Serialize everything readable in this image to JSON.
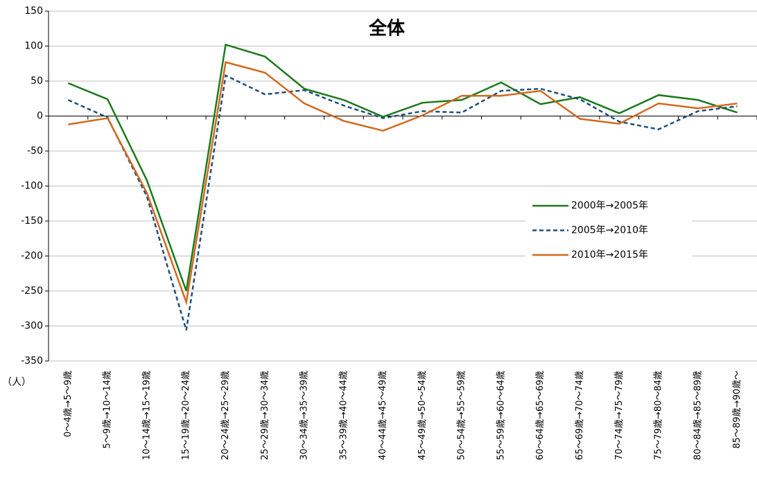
{
  "chart_data": {
    "type": "line",
    "title": "全体",
    "y_unit": "（人）",
    "categories": [
      "0～4歳→5～9歳",
      "5～9歳→10～14歳",
      "10～14歳→15～19歳",
      "15～19歳→20～24歳",
      "20～24歳→25～29歳",
      "25～29歳→30～34歳",
      "30～34歳→35～39歳",
      "35～39歳→40～44歳",
      "40～44歳→45～49歳",
      "45～49歳→50～54歳",
      "50～54歳→55～59歳",
      "55～59歳→60～64歳",
      "60～64歳→65～69歳",
      "65～69歳→70～74歳",
      "70～74歳→75～79歳",
      "75～79歳→80～84歳",
      "80～84歳→85～89歳",
      "85～89歳→90歳～"
    ],
    "series": [
      {
        "name": "2000年→2005年",
        "color": "#1a7a1a",
        "dash": "solid",
        "values": [
          47,
          24,
          -92,
          -250,
          102,
          85,
          39,
          23,
          -1,
          19,
          23,
          48,
          17,
          27,
          4,
          30,
          23,
          5
        ]
      },
      {
        "name": "2005年→2010年",
        "color": "#1f4e79",
        "dash": "dashed",
        "values": [
          23,
          -2,
          -115,
          -306,
          58,
          31,
          37,
          15,
          -3,
          7,
          5,
          36,
          39,
          24,
          -8,
          -19,
          7,
          14
        ]
      },
      {
        "name": "2010年→2015年",
        "color": "#d2691e",
        "dash": "solid",
        "values": [
          -12,
          -3,
          -110,
          -266,
          77,
          62,
          18,
          -7,
          -21,
          1,
          29,
          29,
          36,
          -4,
          -11,
          18,
          11,
          18
        ]
      }
    ],
    "ylim": [
      -350,
      150
    ],
    "yticks": [
      -350,
      -300,
      -250,
      -200,
      -150,
      -100,
      -50,
      0,
      50,
      100,
      150
    ],
    "grid": true
  }
}
